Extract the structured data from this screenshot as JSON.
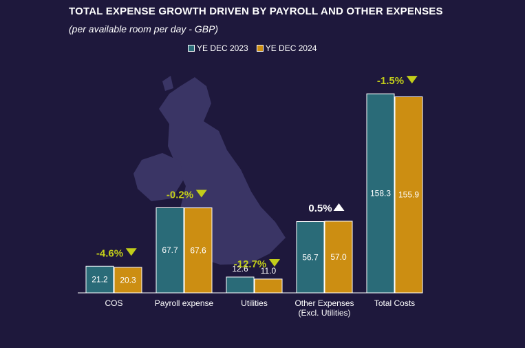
{
  "header": {
    "title": "TOTAL EXPENSE GROWTH DRIVEN BY PAYROLL AND OTHER EXPENSES",
    "subtitle": "(per available room per day - GBP)"
  },
  "legend": {
    "items": [
      {
        "label": "YE DEC 2023",
        "color": "#2a6b78"
      },
      {
        "label": "YE DEC 2024",
        "color": "#cc8e12"
      }
    ]
  },
  "colors": {
    "background": "#1e183c",
    "map": "#3a3565",
    "decrease": "#c2cd1a",
    "increase": "#ffffff"
  },
  "chart_data": {
    "type": "bar",
    "title": "TOTAL EXPENSE GROWTH DRIVEN BY PAYROLL AND OTHER EXPENSES",
    "subtitle": "(per available room per day - GBP)",
    "xlabel": "",
    "ylabel": "",
    "ylim": [
      0,
      160
    ],
    "grid": false,
    "legend_position": "top-center",
    "categories": [
      [
        "COS"
      ],
      [
        "Payroll expense"
      ],
      [
        "Utilities"
      ],
      [
        "Other Expenses",
        "(Excl. Utilities)"
      ],
      [
        "Total Costs"
      ]
    ],
    "series": [
      {
        "name": "YE DEC 2023",
        "values": [
          21.2,
          67.7,
          12.6,
          56.7,
          158.3
        ]
      },
      {
        "name": "YE DEC 2024",
        "values": [
          20.3,
          67.6,
          11.0,
          57.0,
          155.9
        ]
      }
    ],
    "value_labels": [
      [
        "21.2",
        "67.7",
        "12.6",
        "56.7",
        "158.3"
      ],
      [
        "20.3",
        "67.6",
        "11.0",
        "57.0",
        "155.9"
      ]
    ],
    "changes": [
      {
        "label": "-4.6%",
        "direction": "down"
      },
      {
        "label": "-0.2%",
        "direction": "down"
      },
      {
        "label": "-12.7%",
        "direction": "down"
      },
      {
        "label": "0.5%",
        "direction": "up"
      },
      {
        "label": "-1.5%",
        "direction": "down"
      }
    ]
  }
}
